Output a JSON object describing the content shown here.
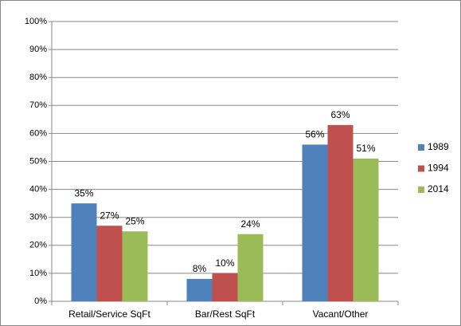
{
  "chart_data": {
    "type": "bar",
    "categories": [
      "Retail/Service SqFt",
      "Bar/Rest SqFt",
      "Vacant/Other"
    ],
    "series": [
      {
        "name": "1989",
        "color": "#4f81bd",
        "values": [
          35,
          8,
          56
        ],
        "value_labels": [
          "35%",
          "8%",
          "56%"
        ]
      },
      {
        "name": "1994",
        "color": "#c0504d",
        "values": [
          27,
          10,
          63
        ],
        "value_labels": [
          "27%",
          "10%",
          "63%"
        ]
      },
      {
        "name": "2014",
        "color": "#9bbb59",
        "values": [
          25,
          24,
          51
        ],
        "value_labels": [
          "25%",
          "24%",
          "51%"
        ]
      }
    ],
    "ylim": [
      0,
      100
    ],
    "yticks": [
      {
        "value": 0,
        "label": "0%"
      },
      {
        "value": 10,
        "label": "10%"
      },
      {
        "value": 20,
        "label": "20%"
      },
      {
        "value": 30,
        "label": "30%"
      },
      {
        "value": 40,
        "label": "40%"
      },
      {
        "value": 50,
        "label": "50%"
      },
      {
        "value": 60,
        "label": "60%"
      },
      {
        "value": 70,
        "label": "70%"
      },
      {
        "value": 80,
        "label": "80%"
      },
      {
        "value": 90,
        "label": "90%"
      },
      {
        "value": 100,
        "label": "100%"
      }
    ],
    "grid": true,
    "legend": "right"
  }
}
